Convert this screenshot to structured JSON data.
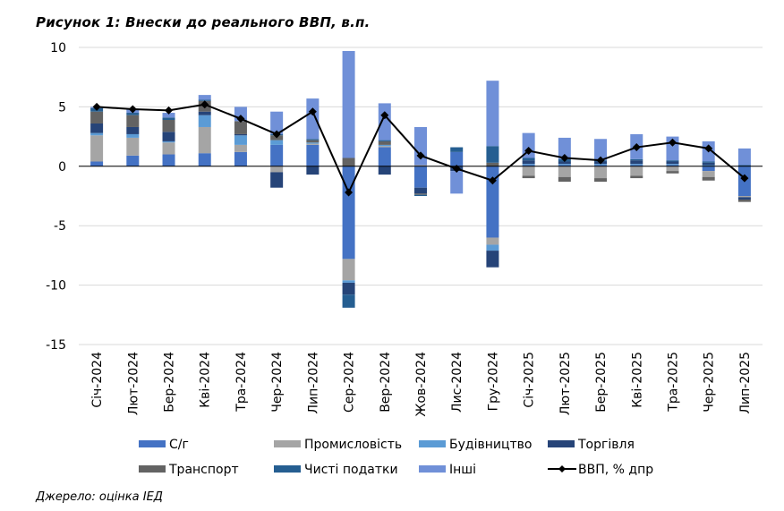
{
  "title": "Рисунок 1: Внески до реального ВВП, в.п.",
  "source": "Джерело: оцінка ІЕД",
  "chart_data": {
    "type": "bar",
    "stacked": true,
    "title": "Рисунок 1: Внески до реального ВВП, в.п.",
    "ylim": [
      -15,
      10
    ],
    "yticks": [
      "10",
      "5",
      "0",
      "-5",
      "-10",
      "-15"
    ],
    "categories": [
      "Січ-2024",
      "Лют-2024",
      "Бер-2024",
      "Кві-2024",
      "Тра-2024",
      "Чер-2024",
      "Лип-2024",
      "Сер-2024",
      "Вер-2024",
      "Жов-2024",
      "Лис-2024",
      "Гру-2024",
      "Січ-2025",
      "Лют-2025",
      "Бер-2025",
      "Кві-2025",
      "Тра-2025",
      "Чер-2025",
      "Лип-2025"
    ],
    "series": [
      {
        "name": "С/г",
        "color": "#4472c4",
        "values": [
          0.4,
          0.9,
          1.0,
          1.1,
          1.2,
          1.8,
          1.8,
          -7.8,
          1.6,
          -1.8,
          1.2,
          -6.0,
          0.1,
          0.1,
          0.1,
          0.1,
          0.1,
          -0.4,
          -2.5
        ]
      },
      {
        "name": "Промисловість",
        "color": "#a5a5a5",
        "values": [
          2.2,
          1.5,
          1.0,
          2.2,
          0.6,
          -0.5,
          0.1,
          -1.8,
          0.1,
          0.1,
          0.0,
          -0.6,
          -0.8,
          -0.9,
          -1.0,
          -0.8,
          -0.4,
          -0.5,
          -0.1
        ]
      },
      {
        "name": "Будівництво",
        "color": "#5b9bd5",
        "values": [
          0.2,
          0.3,
          0.1,
          1.0,
          0.8,
          0.4,
          0.1,
          -0.2,
          0.1,
          0.0,
          0.0,
          -0.5,
          0.1,
          0.1,
          0.1,
          0.1,
          0.1,
          0.1,
          0.0
        ]
      },
      {
        "name": "Торгівля",
        "color": "#264478",
        "values": [
          0.8,
          0.6,
          0.8,
          0.3,
          0.1,
          -1.3,
          -0.7,
          -1.0,
          -0.7,
          -0.5,
          -0.4,
          -1.4,
          0.3,
          0.2,
          0.2,
          0.3,
          0.2,
          0.2,
          -0.2
        ]
      },
      {
        "name": "Транспорт",
        "color": "#636363",
        "values": [
          1.0,
          1.0,
          1.0,
          0.9,
          1.1,
          0.4,
          0.2,
          0.7,
          0.3,
          -0.1,
          0.0,
          0.3,
          -0.2,
          -0.4,
          -0.3,
          -0.2,
          -0.2,
          -0.3,
          -0.2
        ]
      },
      {
        "name": "Чисті податки",
        "color": "#255e91",
        "values": [
          0.3,
          0.2,
          0.2,
          0.1,
          0.0,
          0.1,
          0.1,
          -1.1,
          0.1,
          -0.1,
          0.4,
          1.4,
          0.2,
          0.2,
          0.1,
          0.1,
          0.1,
          0.1,
          0.1
        ]
      },
      {
        "name": "Інші",
        "color": "#7090d8",
        "values": [
          0.1,
          0.3,
          0.4,
          0.4,
          1.2,
          1.9,
          3.4,
          9.0,
          3.1,
          3.2,
          -1.9,
          5.5,
          2.1,
          1.8,
          1.8,
          2.1,
          2.0,
          1.7,
          1.4
        ]
      }
    ],
    "line": {
      "name": "ВВП, % дпр",
      "color": "#000000",
      "values": [
        5.0,
        4.8,
        4.7,
        5.2,
        4.0,
        2.7,
        4.6,
        -2.2,
        4.3,
        0.9,
        -0.2,
        -1.2,
        1.3,
        0.7,
        0.5,
        1.6,
        2.0,
        1.5,
        -1.0
      ]
    },
    "legend": {
      "placement": "bottom",
      "items": [
        "С/г",
        "Промисловість",
        "Будівництво",
        "Торгівля",
        "Транспорт",
        "Чисті податки",
        "Інші",
        "ВВП, % дпр"
      ]
    },
    "grid": true
  }
}
